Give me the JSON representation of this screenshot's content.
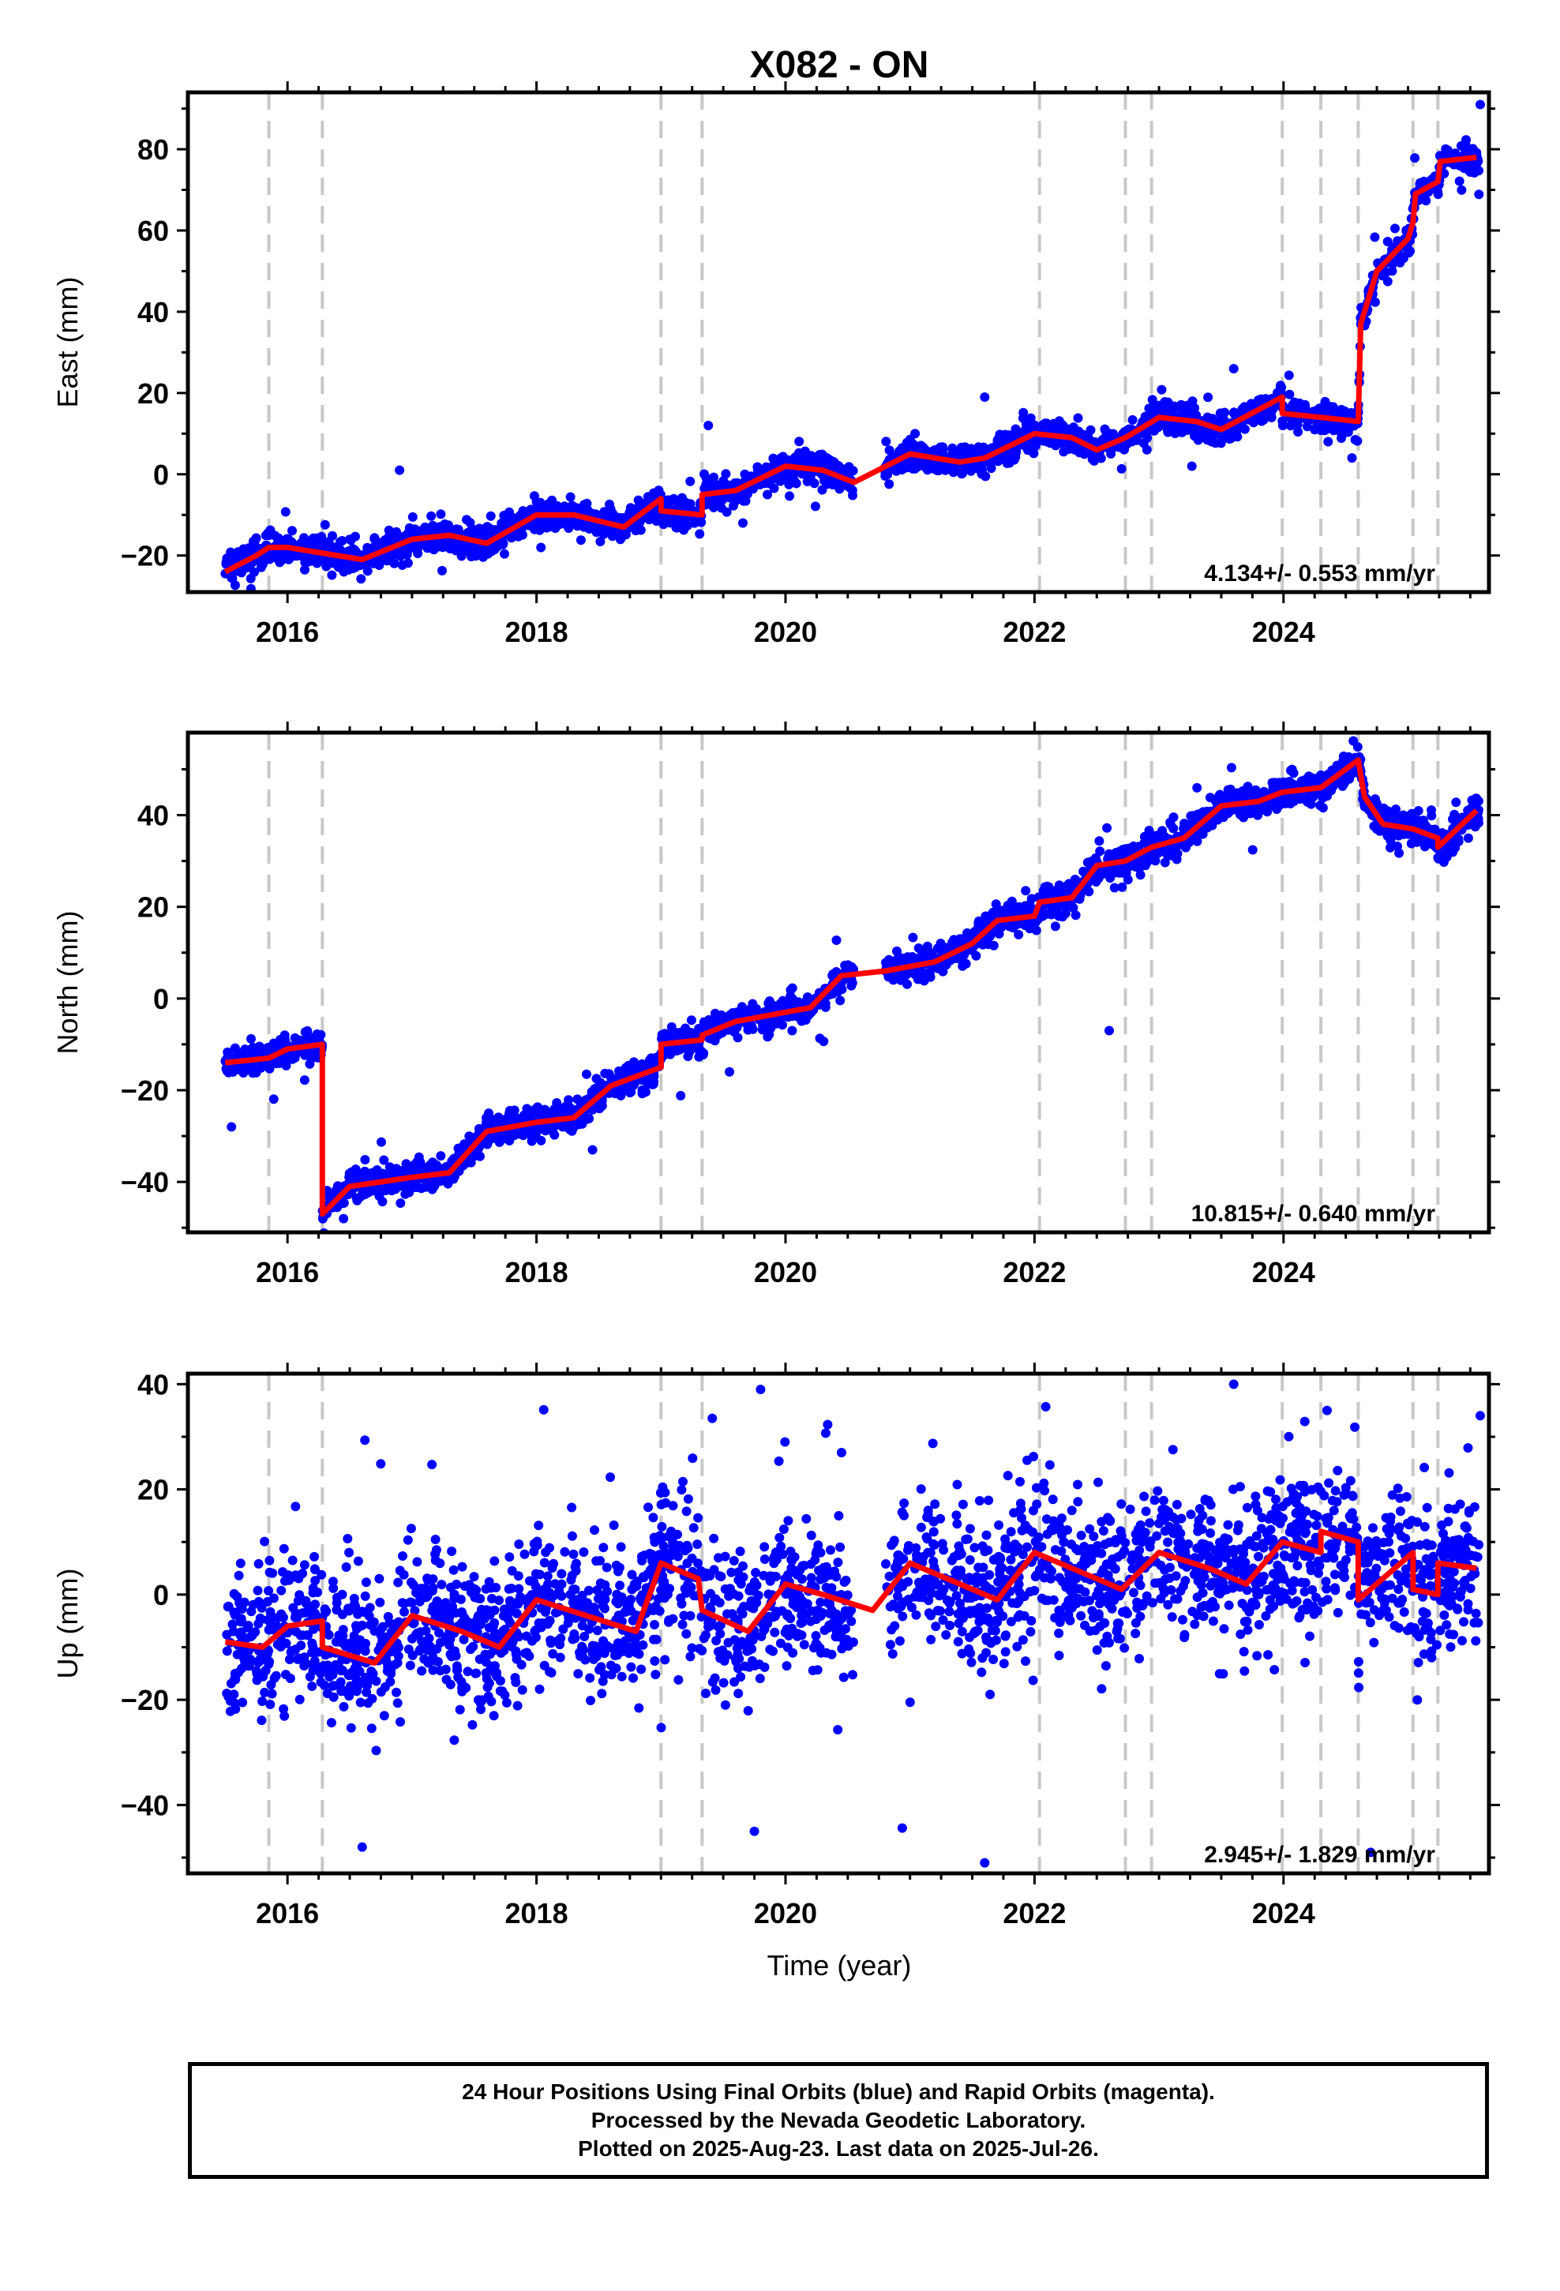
{
  "title": "X082 - ON",
  "xlabel": "Time (year)",
  "caption": [
    "24 Hour Positions Using Final Orbits (blue) and Rapid Orbits (magenta).",
    "Processed by the Nevada Geodetic Laboratory.",
    "Plotted on 2025-Aug-23. Last data on 2025-Jul-26."
  ],
  "colors": {
    "points": "#0000ff",
    "model": "#ff0000",
    "events": "#c8c8c8",
    "axes": "#000000"
  },
  "chart_data": [
    {
      "type": "scatter",
      "panel": "East",
      "ylabel": "East (mm)",
      "rate_label": "4.134+/- 0.553 mm/yr",
      "xlim": [
        2015.2,
        2025.65
      ],
      "ylim": [
        -29,
        94
      ],
      "xticks": [
        2016,
        2018,
        2020,
        2022,
        2024
      ],
      "yticks": [
        -20,
        0,
        20,
        40,
        60,
        80
      ],
      "ytick_labels": [
        "−20",
        "0",
        "20",
        "40",
        "60",
        "80"
      ],
      "events": [
        2015.85,
        2016.28,
        2019.0,
        2019.33,
        2022.04,
        2022.73,
        2022.94,
        2023.99,
        2024.3,
        2024.6,
        2025.04,
        2025.24
      ],
      "model": [
        [
          2015.5,
          -24
        ],
        [
          2015.75,
          -20
        ],
        [
          2015.85,
          -18
        ],
        [
          2016.0,
          -18
        ],
        [
          2016.2,
          -19
        ],
        [
          2016.6,
          -21
        ],
        [
          2017.0,
          -16
        ],
        [
          2017.3,
          -15
        ],
        [
          2017.6,
          -17
        ],
        [
          2018.0,
          -10
        ],
        [
          2018.3,
          -10
        ],
        [
          2018.7,
          -13
        ],
        [
          2019.0,
          -6
        ],
        [
          2019.0,
          -9
        ],
        [
          2019.33,
          -10
        ],
        [
          2019.33,
          -5
        ],
        [
          2019.6,
          -4
        ],
        [
          2020.0,
          2
        ],
        [
          2020.3,
          1
        ],
        [
          2020.55,
          -2
        ],
        [
          2021.0,
          5
        ],
        [
          2021.4,
          3
        ],
        [
          2021.6,
          4
        ],
        [
          2022.0,
          10
        ],
        [
          2022.3,
          9
        ],
        [
          2022.5,
          6
        ],
        [
          2022.73,
          9
        ],
        [
          2023.0,
          14
        ],
        [
          2023.3,
          13
        ],
        [
          2023.5,
          11
        ],
        [
          2023.99,
          19
        ],
        [
          2023.99,
          15
        ],
        [
          2024.3,
          14
        ],
        [
          2024.6,
          13
        ],
        [
          2024.62,
          37
        ],
        [
          2024.75,
          50
        ],
        [
          2025.0,
          58
        ],
        [
          2025.04,
          62
        ],
        [
          2025.06,
          69
        ],
        [
          2025.24,
          72
        ],
        [
          2025.26,
          77
        ],
        [
          2025.55,
          78
        ]
      ],
      "points": {
        "n": 2700,
        "noise": 1.8,
        "gap": [
          2020.55,
          2020.8
        ],
        "outliers": [
          [
            2016.9,
            1
          ],
          [
            2019.38,
            12
          ],
          [
            2021.6,
            19
          ],
          [
            2023.6,
            26
          ],
          [
            2025.58,
            91
          ],
          [
            2024.55,
            4
          ]
        ]
      }
    },
    {
      "type": "scatter",
      "panel": "North",
      "ylabel": "North (mm)",
      "rate_label": "10.815+/- 0.640 mm/yr",
      "xlim": [
        2015.2,
        2025.65
      ],
      "ylim": [
        -51,
        58
      ],
      "xticks": [
        2016,
        2018,
        2020,
        2022,
        2024
      ],
      "yticks": [
        -40,
        -20,
        0,
        20,
        40
      ],
      "ytick_labels": [
        "−40",
        "−20",
        "0",
        "20",
        "40"
      ],
      "events": [
        2015.85,
        2016.28,
        2019.0,
        2019.33,
        2022.04,
        2022.73,
        2022.94,
        2023.99,
        2024.3,
        2024.6,
        2025.04,
        2025.24
      ],
      "model": [
        [
          2015.5,
          -14
        ],
        [
          2015.85,
          -13
        ],
        [
          2016.0,
          -11
        ],
        [
          2016.28,
          -10
        ],
        [
          2016.28,
          -47
        ],
        [
          2016.5,
          -41
        ],
        [
          2017.0,
          -39
        ],
        [
          2017.3,
          -38
        ],
        [
          2017.6,
          -29
        ],
        [
          2018.0,
          -27
        ],
        [
          2018.3,
          -26
        ],
        [
          2018.6,
          -19
        ],
        [
          2019.0,
          -15
        ],
        [
          2019.0,
          -10
        ],
        [
          2019.33,
          -9
        ],
        [
          2019.33,
          -8
        ],
        [
          2019.6,
          -5
        ],
        [
          2020.0,
          -3
        ],
        [
          2020.2,
          -2
        ],
        [
          2020.45,
          5
        ],
        [
          2020.8,
          6
        ],
        [
          2021.2,
          8
        ],
        [
          2021.5,
          12
        ],
        [
          2021.7,
          17
        ],
        [
          2022.0,
          18
        ],
        [
          2022.04,
          21
        ],
        [
          2022.3,
          22
        ],
        [
          2022.5,
          29
        ],
        [
          2022.73,
          30
        ],
        [
          2022.94,
          33
        ],
        [
          2023.2,
          35
        ],
        [
          2023.5,
          42
        ],
        [
          2023.8,
          43
        ],
        [
          2023.99,
          45
        ],
        [
          2024.3,
          46
        ],
        [
          2024.6,
          52
        ],
        [
          2024.65,
          44
        ],
        [
          2024.8,
          38
        ],
        [
          2025.04,
          37
        ],
        [
          2025.24,
          35
        ],
        [
          2025.24,
          33
        ],
        [
          2025.55,
          41
        ]
      ],
      "points": {
        "n": 2700,
        "noise": 1.6,
        "gap": [
          2020.55,
          2020.8
        ],
        "outliers": [
          [
            2015.55,
            -28
          ],
          [
            2019.55,
            -16
          ],
          [
            2022.6,
            -7
          ],
          [
            2016.45,
            -48
          ],
          [
            2018.45,
            -33
          ]
        ]
      }
    },
    {
      "type": "scatter",
      "panel": "Up",
      "ylabel": "Up (mm)",
      "rate_label": "2.945+/- 1.829 mm/yr",
      "xlim": [
        2015.2,
        2025.65
      ],
      "ylim": [
        -53,
        42
      ],
      "xticks": [
        2016,
        2018,
        2020,
        2022,
        2024
      ],
      "yticks": [
        -40,
        -20,
        0,
        20,
        40
      ],
      "ytick_labels": [
        "−40",
        "−20",
        "0",
        "20",
        "40"
      ],
      "events": [
        2015.85,
        2016.28,
        2019.0,
        2019.33,
        2022.04,
        2022.73,
        2022.94,
        2023.99,
        2024.3,
        2024.6,
        2025.04,
        2025.24
      ],
      "model": [
        [
          2015.5,
          -9
        ],
        [
          2015.8,
          -10
        ],
        [
          2016.0,
          -6
        ],
        [
          2016.28,
          -5
        ],
        [
          2016.28,
          -10
        ],
        [
          2016.7,
          -13
        ],
        [
          2017.0,
          -4
        ],
        [
          2017.4,
          -7
        ],
        [
          2017.7,
          -10
        ],
        [
          2018.0,
          -1
        ],
        [
          2018.4,
          -4
        ],
        [
          2018.8,
          -7
        ],
        [
          2019.0,
          6
        ],
        [
          2019.3,
          3
        ],
        [
          2019.33,
          -3
        ],
        [
          2019.7,
          -7
        ],
        [
          2020.0,
          2
        ],
        [
          2020.3,
          0
        ],
        [
          2020.7,
          -3
        ],
        [
          2021.0,
          6
        ],
        [
          2021.4,
          2
        ],
        [
          2021.7,
          -1
        ],
        [
          2022.0,
          8
        ],
        [
          2022.4,
          4
        ],
        [
          2022.7,
          1
        ],
        [
          2023.0,
          8
        ],
        [
          2023.4,
          5
        ],
        [
          2023.7,
          2
        ],
        [
          2023.99,
          10
        ],
        [
          2024.3,
          8
        ],
        [
          2024.3,
          12
        ],
        [
          2024.6,
          10
        ],
        [
          2024.6,
          -1
        ],
        [
          2025.04,
          8
        ],
        [
          2025.04,
          1
        ],
        [
          2025.24,
          0
        ],
        [
          2025.24,
          6
        ],
        [
          2025.55,
          5
        ]
      ],
      "points": {
        "n": 2600,
        "noise": 7,
        "gap": [
          2020.55,
          2020.8
        ],
        "outliers": [
          [
            2023.6,
            40
          ],
          [
            2020.45,
            27
          ],
          [
            2021.6,
            -51
          ],
          [
            2024.35,
            35
          ],
          [
            2016.6,
            -48
          ],
          [
            2019.75,
            -45
          ],
          [
            2025.58,
            34
          ],
          [
            2024.7,
            -49
          ]
        ]
      }
    }
  ]
}
